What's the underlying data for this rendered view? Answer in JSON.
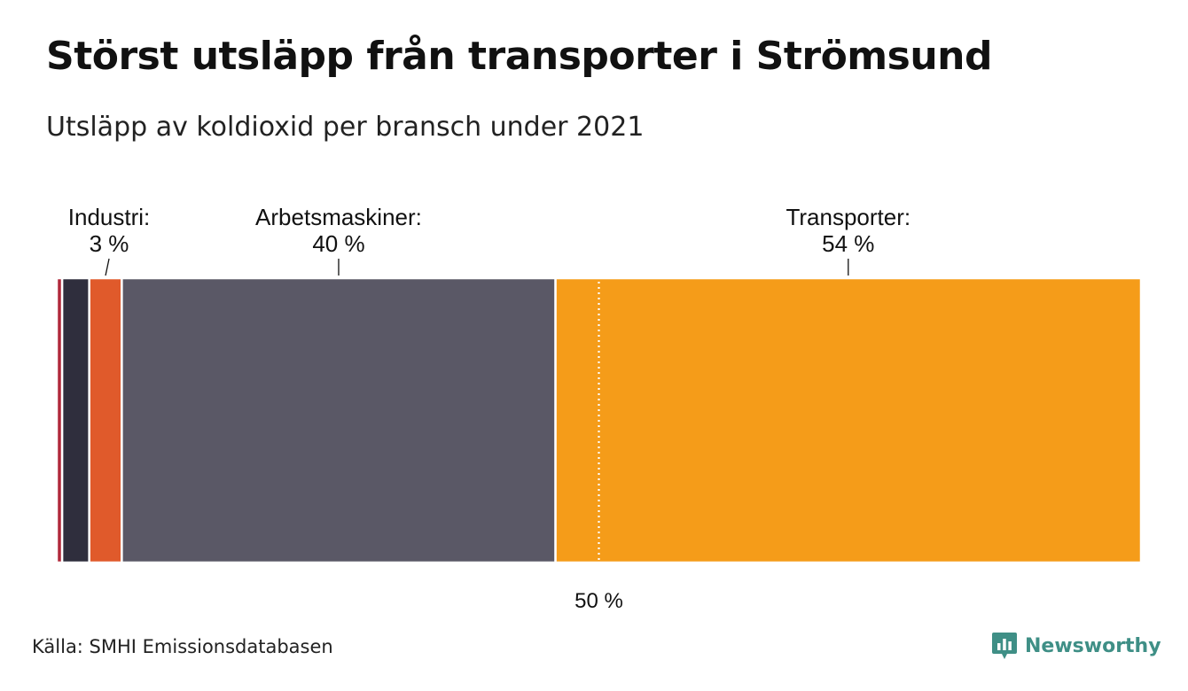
{
  "title": "Störst utsläpp från transporter i Strömsund",
  "subtitle": "Utsläpp av koldioxid per bransch under 2021",
  "source": "Källa: SMHI Emissionsdatabasen",
  "brand": {
    "name": "Newsworthy",
    "icon": "newsworthy-logo-icon",
    "color": "#3f8f86"
  },
  "chart_data": {
    "type": "bar",
    "orientation": "horizontal-stacked-100",
    "unit": "%",
    "segments": [
      {
        "name": "",
        "value": 0.5,
        "color": "#b0283a",
        "label": "",
        "value_label": ""
      },
      {
        "name": "",
        "value": 2.5,
        "color": "#2f2e3d",
        "label": "",
        "value_label": ""
      },
      {
        "name": "Industri",
        "value": 3,
        "color": "#e05a2b",
        "label": "Industri:",
        "value_label": "3 %"
      },
      {
        "name": "Arbetsmaskiner",
        "value": 40,
        "color": "#5a5866",
        "label": "Arbetsmaskiner:",
        "value_label": "40 %"
      },
      {
        "name": "Transporter",
        "value": 54,
        "color": "#f59c19",
        "label": "Transporter:",
        "value_label": "54 %"
      }
    ],
    "reference_line": {
      "value": 50,
      "label": "50 %"
    },
    "xlim": [
      0,
      100
    ],
    "grid": false,
    "legend": "none"
  }
}
